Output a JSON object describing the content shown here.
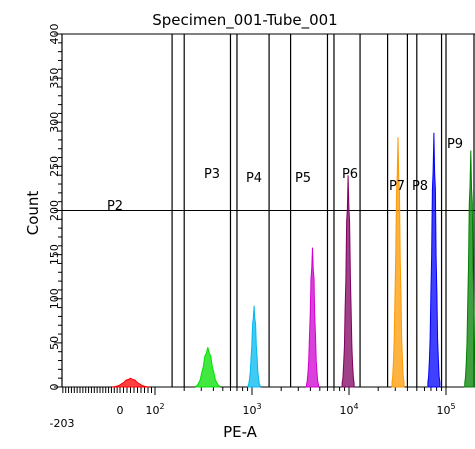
{
  "chart_data": {
    "type": "histogram",
    "title": "Specimen_001-Tube_001",
    "xlabel": "PE-A",
    "ylabel": "Count",
    "x_scale": "biexponential",
    "ylim": [
      0,
      400
    ],
    "y_ticks": [
      "0",
      "50",
      "100",
      "150",
      "200",
      "250",
      "300",
      "350",
      "400"
    ],
    "x_ticks": [
      {
        "value": -203,
        "base": "-203",
        "exp": ""
      },
      {
        "value": 0,
        "base": "0",
        "exp": ""
      },
      {
        "value": 100,
        "base": "10",
        "exp": "2"
      },
      {
        "value": 1000,
        "base": "10",
        "exp": "3"
      },
      {
        "value": 10000,
        "base": "10",
        "exp": "4"
      },
      {
        "value": 100000,
        "base": "10",
        "exp": "5"
      }
    ],
    "threshold_count": 200,
    "gates": [
      {
        "name": "P2",
        "x_range": [
          -203,
          150
        ]
      },
      {
        "name": "P3",
        "x_range": [
          200,
          600
        ]
      },
      {
        "name": "P4",
        "x_range": [
          700,
          1500
        ]
      },
      {
        "name": "P5",
        "x_range": [
          2500,
          6000
        ]
      },
      {
        "name": "P6",
        "x_range": [
          7000,
          13000
        ]
      },
      {
        "name": "P7",
        "x_range": [
          25000,
          40000
        ]
      },
      {
        "name": "P8",
        "x_range": [
          50000,
          90000
        ]
      },
      {
        "name": "P9",
        "x_range": [
          100000,
          250000
        ]
      }
    ],
    "series": [
      {
        "color": "#ff0000",
        "peak_x": 30,
        "peak_count": 10
      },
      {
        "color": "#00e000",
        "peak_x": 350,
        "peak_count": 45
      },
      {
        "color": "#00b8f0",
        "peak_x": 1050,
        "peak_count": 92
      },
      {
        "color": "#d000d0",
        "peak_x": 4200,
        "peak_count": 158
      },
      {
        "color": "#800060",
        "peak_x": 9800,
        "peak_count": 240
      },
      {
        "color": "#ff9900",
        "peak_x": 32000,
        "peak_count": 283
      },
      {
        "color": "#0000ff",
        "peak_x": 75000,
        "peak_count": 288
      },
      {
        "color": "#008000",
        "peak_x": 180000,
        "peak_count": 268
      }
    ],
    "grid": false,
    "legend": "none"
  }
}
